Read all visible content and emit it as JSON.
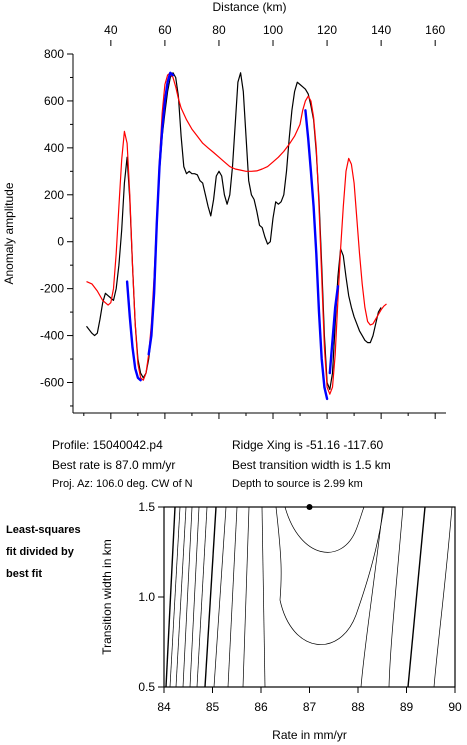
{
  "chart_data": [
    {
      "type": "line",
      "xlabel": "Distance (km)",
      "ylabel": "Anomaly amplitude",
      "xlim": [
        26,
        164
      ],
      "ylim": [
        -730,
        800
      ],
      "xticks": [
        40,
        60,
        80,
        100,
        120,
        140,
        160
      ],
      "yticks": [
        -600,
        -400,
        -200,
        0,
        200,
        400,
        600,
        800
      ],
      "x_axis_position": "top",
      "colors": {
        "observed": "#000000",
        "model": "#ff0000",
        "fit": "#0000ff"
      },
      "series": [
        {
          "key": "observed",
          "points": [
            [
              31,
              -360
            ],
            [
              33,
              -390
            ],
            [
              34,
              -400
            ],
            [
              35,
              -390
            ],
            [
              36,
              -330
            ],
            [
              37,
              -260
            ],
            [
              38,
              -220
            ],
            [
              39,
              -230
            ],
            [
              40,
              -240
            ],
            [
              41,
              -250
            ],
            [
              42,
              -200
            ],
            [
              43,
              -100
            ],
            [
              44,
              50
            ],
            [
              45,
              250
            ],
            [
              46,
              360
            ],
            [
              47,
              180
            ],
            [
              48,
              -100
            ],
            [
              49,
              -350
            ],
            [
              50,
              -500
            ],
            [
              51,
              -560
            ],
            [
              52,
              -580
            ],
            [
              53,
              -560
            ],
            [
              54,
              -500
            ],
            [
              55,
              -400
            ],
            [
              56,
              -200
            ],
            [
              57,
              100
            ],
            [
              58,
              300
            ],
            [
              59,
              450
            ],
            [
              60,
              550
            ],
            [
              61,
              640
            ],
            [
              62,
              700
            ],
            [
              63,
              720
            ],
            [
              64,
              700
            ],
            [
              65,
              620
            ],
            [
              66,
              450
            ],
            [
              67,
              320
            ],
            [
              68,
              290
            ],
            [
              69,
              300
            ],
            [
              70,
              290
            ],
            [
              71,
              290
            ],
            [
              72,
              285
            ],
            [
              73,
              260
            ],
            [
              74,
              250
            ],
            [
              75,
              200
            ],
            [
              76,
              150
            ],
            [
              77,
              110
            ],
            [
              78,
              180
            ],
            [
              79,
              280
            ],
            [
              80,
              300
            ],
            [
              81,
              280
            ],
            [
              82,
              200
            ],
            [
              83,
              160
            ],
            [
              84,
              200
            ],
            [
              85,
              320
            ],
            [
              86,
              500
            ],
            [
              87,
              680
            ],
            [
              88,
              720
            ],
            [
              89,
              640
            ],
            [
              90,
              450
            ],
            [
              91,
              260
            ],
            [
              92,
              200
            ],
            [
              93,
              180
            ],
            [
              94,
              130
            ],
            [
              95,
              70
            ],
            [
              96,
              60
            ],
            [
              97,
              20
            ],
            [
              98,
              -10
            ],
            [
              99,
              0
            ],
            [
              100,
              100
            ],
            [
              101,
              170
            ],
            [
              102,
              160
            ],
            [
              103,
              170
            ],
            [
              104,
              200
            ],
            [
              105,
              300
            ],
            [
              106,
              440
            ],
            [
              107,
              560
            ],
            [
              108,
              640
            ],
            [
              109,
              680
            ],
            [
              110,
              670
            ],
            [
              111,
              660
            ],
            [
              112,
              650
            ],
            [
              113,
              630
            ],
            [
              114,
              580
            ],
            [
              115,
              520
            ],
            [
              116,
              380
            ],
            [
              117,
              180
            ],
            [
              118,
              -100
            ],
            [
              119,
              -400
            ],
            [
              120,
              -600
            ],
            [
              121,
              -630
            ],
            [
              122,
              -560
            ],
            [
              123,
              -350
            ],
            [
              124,
              -150
            ],
            [
              125,
              -30
            ],
            [
              126,
              -60
            ],
            [
              127,
              -150
            ],
            [
              128,
              -230
            ],
            [
              129,
              -280
            ],
            [
              130,
              -320
            ],
            [
              131,
              -350
            ],
            [
              132,
              -380
            ],
            [
              133,
              -400
            ],
            [
              134,
              -420
            ],
            [
              135,
              -430
            ],
            [
              136,
              -430
            ],
            [
              137,
              -400
            ],
            [
              138,
              -350
            ],
            [
              139,
              -300
            ],
            [
              140,
              -280
            ]
          ]
        },
        {
          "key": "model",
          "points": [
            [
              31,
              -170
            ],
            [
              33,
              -180
            ],
            [
              35,
              -210
            ],
            [
              37,
              -250
            ],
            [
              39,
              -270
            ],
            [
              40,
              -260
            ],
            [
              41,
              -200
            ],
            [
              42,
              -50
            ],
            [
              43,
              150
            ],
            [
              44,
              350
            ],
            [
              45,
              470
            ],
            [
              46,
              420
            ],
            [
              47,
              200
            ],
            [
              48,
              -100
            ],
            [
              49,
              -350
            ],
            [
              50,
              -520
            ],
            [
              51,
              -580
            ],
            [
              52,
              -590
            ],
            [
              53,
              -560
            ],
            [
              54,
              -480
            ],
            [
              55,
              -350
            ],
            [
              56,
              -150
            ],
            [
              57,
              100
            ],
            [
              58,
              350
            ],
            [
              59,
              550
            ],
            [
              60,
              670
            ],
            [
              61,
              710
            ],
            [
              62,
              720
            ],
            [
              63,
              700
            ],
            [
              64,
              660
            ],
            [
              65,
              610
            ],
            [
              66,
              570
            ],
            [
              68,
              520
            ],
            [
              70,
              480
            ],
            [
              72,
              450
            ],
            [
              74,
              420
            ],
            [
              76,
              400
            ],
            [
              78,
              380
            ],
            [
              80,
              360
            ],
            [
              82,
              340
            ],
            [
              84,
              320
            ],
            [
              86,
              310
            ],
            [
              88,
              305
            ],
            [
              90,
              300
            ],
            [
              92,
              300
            ],
            [
              94,
              302
            ],
            [
              96,
              310
            ],
            [
              98,
              320
            ],
            [
              100,
              340
            ],
            [
              102,
              360
            ],
            [
              104,
              385
            ],
            [
              106,
              415
            ],
            [
              108,
              450
            ],
            [
              110,
              500
            ],
            [
              111,
              560
            ],
            [
              112,
              600
            ],
            [
              113,
              620
            ],
            [
              114,
              600
            ],
            [
              115,
              530
            ],
            [
              116,
              400
            ],
            [
              117,
              150
            ],
            [
              118,
              -150
            ],
            [
              119,
              -450
            ],
            [
              120,
              -620
            ],
            [
              121,
              -650
            ],
            [
              122,
              -620
            ],
            [
              123,
              -480
            ],
            [
              124,
              -250
            ],
            [
              125,
              -30
            ],
            [
              126,
              150
            ],
            [
              127,
              300
            ],
            [
              128,
              355
            ],
            [
              129,
              330
            ],
            [
              130,
              250
            ],
            [
              131,
              100
            ],
            [
              132,
              -50
            ],
            [
              133,
              -180
            ],
            [
              134,
              -280
            ],
            [
              135,
              -340
            ],
            [
              136,
              -355
            ],
            [
              137,
              -350
            ],
            [
              138,
              -330
            ],
            [
              139,
              -310
            ],
            [
              140,
              -290
            ],
            [
              141,
              -275
            ],
            [
              142,
              -265
            ]
          ]
        },
        {
          "key": "fit",
          "segments": [
            [
              [
                46,
                -170
              ],
              [
                47,
                -320
              ],
              [
                48,
                -450
              ],
              [
                49,
                -540
              ],
              [
                50,
                -580
              ],
              [
                51,
                -590
              ]
            ],
            [
              [
                54,
                -480
              ],
              [
                55,
                -400
              ],
              [
                56,
                -220
              ],
              [
                57,
                80
              ],
              [
                58,
                320
              ],
              [
                59,
                480
              ],
              [
                60,
                600
              ],
              [
                61,
                680
              ],
              [
                62,
                720
              ],
              [
                63,
                710
              ]
            ],
            [
              [
                112,
                560
              ],
              [
                113,
                440
              ],
              [
                114,
                300
              ],
              [
                115,
                150
              ],
              [
                116,
                -50
              ],
              [
                117,
                -300
              ],
              [
                118,
                -500
              ],
              [
                119,
                -620
              ],
              [
                120,
                -670
              ]
            ],
            [
              [
                121,
                -560
              ],
              [
                122,
                -420
              ],
              [
                123,
                -280
              ],
              [
                124,
                -190
              ]
            ]
          ]
        }
      ]
    },
    {
      "type": "contour",
      "xlabel": "Rate in mm/yr",
      "ylabel": "Transition width in km",
      "xlim": [
        84,
        90
      ],
      "ylim": [
        0.5,
        1.5
      ],
      "xticks": [
        84,
        85,
        86,
        87,
        88,
        89,
        90
      ],
      "yticks": [
        0.5,
        1.0,
        1.5
      ],
      "best_fit_marker": [
        87.0,
        1.5
      ]
    }
  ],
  "info": {
    "profile": "Profile: 15040042.p4",
    "best_rate": "Best rate is 87.0 mm/yr",
    "proj_az": "Proj. Az: 106.0 deg. CW of N",
    "ridge_xing": "Ridge Xing is -51.16 -117.60",
    "best_width": "Best transition width is 1.5 km",
    "depth": "Depth to source is   2.99 km"
  },
  "side_note": [
    "Least-squares",
    "fit divided by",
    "best fit"
  ]
}
